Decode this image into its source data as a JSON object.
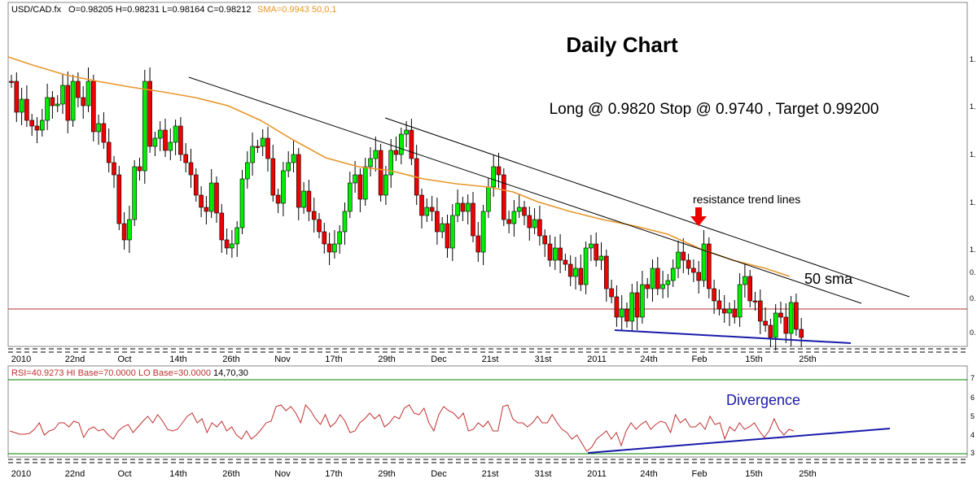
{
  "chart_data": {
    "type": "candlestick",
    "symbol_label": "USD/CAD.fx",
    "ohlc_readout": {
      "open_label": "O=0.98205",
      "high_label": "H=0.98231",
      "low_label": "L=0.98164",
      "close_label": "C=0.98212"
    },
    "sma_label": "SMA=0.9943",
    "sma_params": "50,0,1",
    "title": "Daily Chart",
    "trade_note": "Long @ 0.9820 Stop @ 0.9740 , Target 0.99200",
    "annotations": {
      "resistance": "resistance trend lines",
      "sma": "50 sma",
      "divergence": "Divergence"
    },
    "price_axis_ticks": [
      "1.",
      "1.",
      "1.",
      "1.",
      "1.",
      "0.",
      "0.",
      "0."
    ],
    "rsi_axis_ticks": [
      "7",
      "6",
      "5",
      "4",
      "3"
    ],
    "x_tick_labels": [
      "2010",
      "22nd",
      "Oct",
      "14th",
      "26th",
      "Nov",
      "17th",
      "29th",
      "Dec",
      "21st",
      "31st",
      "2011",
      "24th",
      "Feb",
      "15th",
      "25th"
    ],
    "current_price_line": 0.982,
    "rsi": {
      "label": "RSI=40.9273 HI Base=70.0000 LO Base=30.0000",
      "params": "14,70,30",
      "hi_base": 70,
      "lo_base": 30
    },
    "colors": {
      "up_candle": "#00ee00",
      "down_candle": "#ee0000",
      "sma_line": "#e8962a",
      "trend_lines": "#000000",
      "support_line": "#1a1aaa",
      "price_line": "#b03030",
      "rsi_line": "#c03030",
      "arrow": "#ee0000"
    }
  }
}
